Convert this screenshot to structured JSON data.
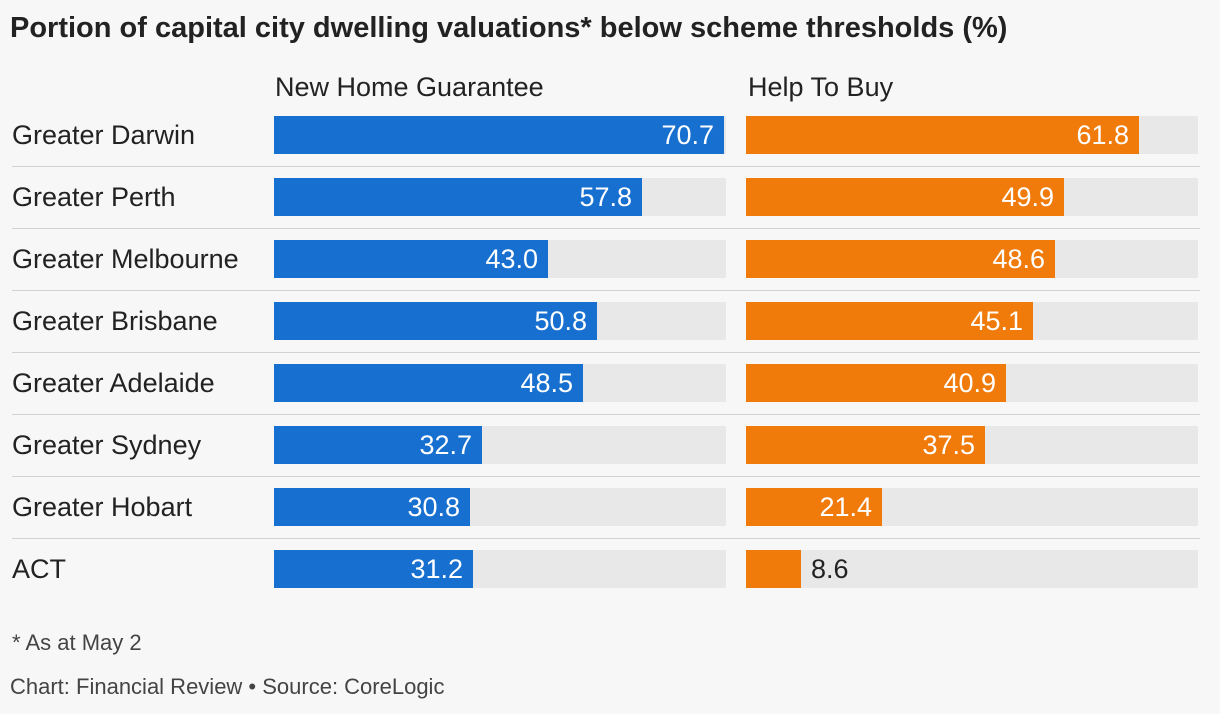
{
  "chart_data": {
    "type": "bar",
    "title": "Portion of capital city dwelling valuations* below scheme thresholds (%)",
    "categories": [
      "Greater Darwin",
      "Greater Perth",
      "Greater Melbourne",
      "Greater Brisbane",
      "Greater Adelaide",
      "Greater Sydney",
      "Greater Hobart",
      "ACT"
    ],
    "series": [
      {
        "name": "New Home Guarantee",
        "color": "#176fcf",
        "values": [
          70.7,
          57.8,
          43.0,
          50.8,
          48.5,
          32.7,
          30.8,
          31.2
        ]
      },
      {
        "name": "Help To Buy",
        "color": "#f07a0a",
        "values": [
          61.8,
          49.9,
          48.6,
          45.1,
          40.9,
          37.5,
          21.4,
          8.6
        ]
      }
    ],
    "xlim": [
      0,
      71
    ],
    "orientation": "horizontal",
    "grid": false
  },
  "footnote": "* As at May 2",
  "source": "Chart: Financial Review • Source: CoreLogic"
}
